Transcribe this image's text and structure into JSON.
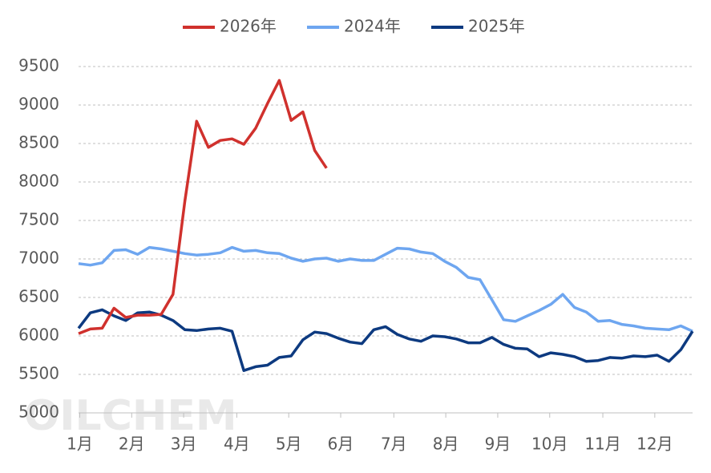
{
  "chart_data": {
    "type": "line",
    "watermark": "OILCHEM",
    "x": [
      1,
      2,
      3,
      4,
      5,
      6,
      7,
      8,
      9,
      10,
      11,
      12,
      13,
      14,
      15,
      16,
      17,
      18,
      19,
      20,
      21,
      22,
      23,
      24,
      25,
      26,
      27,
      28,
      29,
      30,
      31,
      32,
      33,
      34,
      35,
      36,
      37,
      38,
      39,
      40,
      41,
      42,
      43,
      44,
      45,
      46,
      47,
      48,
      49,
      50,
      51,
      52,
      53
    ],
    "xlim": [
      1,
      53
    ],
    "xticks": [
      {
        "value": 1.1,
        "label": "1月"
      },
      {
        "value": 5.5,
        "label": "2月"
      },
      {
        "value": 9.9,
        "label": "3月"
      },
      {
        "value": 14.4,
        "label": "4月"
      },
      {
        "value": 18.8,
        "label": "5月"
      },
      {
        "value": 23.2,
        "label": "6月"
      },
      {
        "value": 27.7,
        "label": "7月"
      },
      {
        "value": 32.1,
        "label": "8月"
      },
      {
        "value": 36.5,
        "label": "9月"
      },
      {
        "value": 40.9,
        "label": "10月"
      },
      {
        "value": 45.4,
        "label": "11月"
      },
      {
        "value": 49.8,
        "label": "12月"
      }
    ],
    "ylim": [
      5000,
      9500
    ],
    "yticks": [
      5000,
      5500,
      6000,
      6500,
      7000,
      7500,
      8000,
      8500,
      9000,
      9500
    ],
    "grid": true,
    "legend": "top",
    "series": [
      {
        "name": "2026年",
        "color": "#d0312d",
        "values": [
          6030,
          6090,
          6100,
          6360,
          6240,
          6270,
          6270,
          6280,
          6540,
          7750,
          8790,
          8450,
          8540,
          8560,
          8490,
          8700,
          9020,
          9320,
          8800,
          8910,
          8410,
          8180,
          null,
          null,
          null,
          null,
          null,
          null,
          null,
          null,
          null,
          null,
          null,
          null,
          null,
          null,
          null,
          null,
          null,
          null,
          null,
          null,
          null,
          null,
          null,
          null,
          null,
          null,
          null,
          null,
          null,
          null,
          null
        ]
      },
      {
        "name": "2024年",
        "color": "#6ea6f0",
        "values": [
          6940,
          6920,
          6950,
          7110,
          7120,
          7060,
          7150,
          7130,
          7100,
          7070,
          7050,
          7060,
          7080,
          7150,
          7100,
          7110,
          7080,
          7070,
          7010,
          6970,
          7000,
          7010,
          6970,
          7000,
          6980,
          6980,
          7060,
          7140,
          7130,
          7090,
          7070,
          6970,
          6890,
          6760,
          6730,
          6470,
          6210,
          6190,
          6260,
          6330,
          6410,
          6540,
          6370,
          6310,
          6190,
          6200,
          6150,
          6130,
          6100,
          6090,
          6080,
          6130,
          6060
        ]
      },
      {
        "name": "2025年",
        "color": "#0d3a80",
        "values": [
          6100,
          6300,
          6340,
          6260,
          6200,
          6300,
          6310,
          6270,
          6200,
          6080,
          6070,
          6090,
          6100,
          6060,
          5550,
          5600,
          5620,
          5720,
          5740,
          5950,
          6050,
          6030,
          5970,
          5920,
          5900,
          6080,
          6120,
          6020,
          5960,
          5930,
          6000,
          5990,
          5960,
          5910,
          5910,
          5980,
          5890,
          5840,
          5830,
          5730,
          5780,
          5760,
          5730,
          5670,
          5680,
          5720,
          5710,
          5740,
          5730,
          5750,
          5670,
          5820,
          6060
        ]
      }
    ]
  }
}
